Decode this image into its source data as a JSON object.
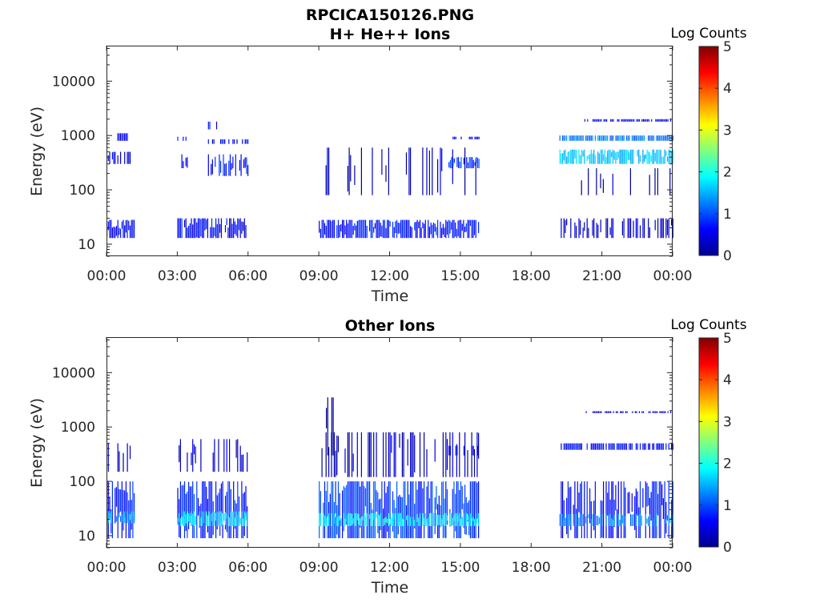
{
  "figure": {
    "filename": "RPCICA150126.PNG"
  },
  "chart_data": [
    {
      "type": "heatmap",
      "title": "H+ He++ Ions",
      "xlabel": "Time",
      "ylabel": "Energy (eV)",
      "y_scale": "log",
      "ylim": [
        6,
        45000
      ],
      "x_ticks": [
        "00:00",
        "03:00",
        "06:00",
        "09:00",
        "12:00",
        "15:00",
        "18:00",
        "21:00",
        "00:00"
      ],
      "x_tick_hours": [
        0,
        3,
        6,
        9,
        12,
        15,
        18,
        21,
        24
      ],
      "y_ticks": [
        10,
        100,
        1000,
        10000
      ],
      "y_tick_labels": [
        "10",
        "100",
        "1000",
        "10000"
      ],
      "colorbar": {
        "label": "Log Counts",
        "min": 0,
        "max": 5,
        "ticks": [
          "0",
          "1",
          "2",
          "3",
          "4",
          "5"
        ]
      },
      "data_intervals_hours": [
        [
          0.0,
          1.2
        ],
        [
          3.0,
          6.0
        ],
        [
          9.0,
          15.8
        ],
        [
          19.2,
          24.0
        ]
      ],
      "bands": [
        {
          "t0": 0.0,
          "t1": 1.2,
          "e0": 13,
          "e1": 28,
          "level": 0.6,
          "density": 0.85
        },
        {
          "t0": 0.0,
          "t1": 1.2,
          "e0": 300,
          "e1": 500,
          "level": 0.5,
          "density": 0.5
        },
        {
          "t0": 0.4,
          "t1": 1.0,
          "e0": 800,
          "e1": 1100,
          "level": 0.5,
          "density": 0.5
        },
        {
          "t0": 3.0,
          "t1": 6.0,
          "e0": 13,
          "e1": 30,
          "level": 0.6,
          "density": 0.9
        },
        {
          "t0": 3.0,
          "t1": 3.5,
          "e0": 250,
          "e1": 450,
          "level": 0.7,
          "density": 0.7
        },
        {
          "t0": 3.0,
          "t1": 3.4,
          "e0": 800,
          "e1": 950,
          "level": 0.7,
          "density": 0.6
        },
        {
          "t0": 4.3,
          "t1": 6.0,
          "e0": 180,
          "e1": 450,
          "level": 0.7,
          "density": 0.75
        },
        {
          "t0": 4.3,
          "t1": 6.0,
          "e0": 700,
          "e1": 850,
          "level": 0.6,
          "density": 0.6
        },
        {
          "t0": 4.3,
          "t1": 4.8,
          "e0": 1300,
          "e1": 1800,
          "level": 0.6,
          "density": 0.5
        },
        {
          "t0": 9.0,
          "t1": 15.8,
          "e0": 13,
          "e1": 28,
          "level": 0.7,
          "density": 0.95
        },
        {
          "t0": 9.0,
          "t1": 15.8,
          "e0": 80,
          "e1": 600,
          "level": 0.3,
          "density": 0.2
        },
        {
          "t0": 14.5,
          "t1": 15.8,
          "e0": 250,
          "e1": 400,
          "level": 0.9,
          "density": 0.8
        },
        {
          "t0": 14.5,
          "t1": 15.8,
          "e0": 850,
          "e1": 950,
          "level": 0.6,
          "density": 0.5
        },
        {
          "t0": 19.2,
          "t1": 24.0,
          "e0": 13,
          "e1": 30,
          "level": 0.35,
          "density": 0.45
        },
        {
          "t0": 19.2,
          "t1": 24.0,
          "e0": 300,
          "e1": 550,
          "level": 1.6,
          "density": 0.9
        },
        {
          "t0": 19.2,
          "t1": 24.0,
          "e0": 800,
          "e1": 1000,
          "level": 1.2,
          "density": 0.8
        },
        {
          "t0": 20.2,
          "t1": 24.0,
          "e0": 1800,
          "e1": 2000,
          "level": 0.6,
          "density": 0.7
        },
        {
          "t0": 20.0,
          "t1": 24.0,
          "e0": 80,
          "e1": 250,
          "level": 0.25,
          "density": 0.2
        }
      ]
    },
    {
      "type": "heatmap",
      "title": "Other Ions",
      "xlabel": "Time",
      "ylabel": "Energy (eV)",
      "y_scale": "log",
      "ylim": [
        6,
        45000
      ],
      "x_ticks": [
        "00:00",
        "03:00",
        "06:00",
        "09:00",
        "12:00",
        "15:00",
        "18:00",
        "21:00",
        "00:00"
      ],
      "x_tick_hours": [
        0,
        3,
        6,
        9,
        12,
        15,
        18,
        21,
        24
      ],
      "y_ticks": [
        10,
        100,
        1000,
        10000
      ],
      "y_tick_labels": [
        "10",
        "100",
        "1000",
        "10000"
      ],
      "colorbar": {
        "label": "Log Counts",
        "min": 0,
        "max": 5,
        "ticks": [
          "0",
          "1",
          "2",
          "3",
          "4",
          "5"
        ]
      },
      "data_intervals_hours": [
        [
          0.0,
          1.2
        ],
        [
          3.0,
          6.0
        ],
        [
          9.0,
          15.8
        ],
        [
          19.2,
          24.0
        ]
      ],
      "bands": [
        {
          "t0": 0.0,
          "t1": 1.2,
          "e0": 9,
          "e1": 100,
          "level": 0.7,
          "density": 0.9
        },
        {
          "t0": 0.0,
          "t1": 1.2,
          "e0": 17,
          "e1": 28,
          "level": 1.4,
          "density": 0.7
        },
        {
          "t0": 0.0,
          "t1": 1.2,
          "e0": 150,
          "e1": 500,
          "level": 0.3,
          "density": 0.2
        },
        {
          "t0": 3.0,
          "t1": 6.0,
          "e0": 9,
          "e1": 100,
          "level": 0.8,
          "density": 0.95
        },
        {
          "t0": 3.0,
          "t1": 6.0,
          "e0": 15,
          "e1": 28,
          "level": 1.7,
          "density": 0.9
        },
        {
          "t0": 3.0,
          "t1": 6.0,
          "e0": 150,
          "e1": 600,
          "level": 0.4,
          "density": 0.4
        },
        {
          "t0": 9.0,
          "t1": 15.8,
          "e0": 9,
          "e1": 100,
          "level": 0.9,
          "density": 0.95
        },
        {
          "t0": 9.0,
          "t1": 15.8,
          "e0": 15,
          "e1": 26,
          "level": 1.8,
          "density": 0.9
        },
        {
          "t0": 9.0,
          "t1": 15.8,
          "e0": 120,
          "e1": 800,
          "level": 0.35,
          "density": 0.35
        },
        {
          "t0": 9.3,
          "t1": 9.9,
          "e0": 300,
          "e1": 3500,
          "level": 0.25,
          "density": 0.3
        },
        {
          "t0": 14.5,
          "t1": 15.8,
          "e0": 300,
          "e1": 450,
          "level": 0.6,
          "density": 0.6
        },
        {
          "t0": 19.2,
          "t1": 24.0,
          "e0": 9,
          "e1": 100,
          "level": 0.7,
          "density": 0.75
        },
        {
          "t0": 19.2,
          "t1": 24.0,
          "e0": 15,
          "e1": 25,
          "level": 1.3,
          "density": 0.7
        },
        {
          "t0": 19.2,
          "t1": 24.0,
          "e0": 380,
          "e1": 500,
          "level": 0.6,
          "density": 0.75
        },
        {
          "t0": 20.2,
          "t1": 24.0,
          "e0": 1800,
          "e1": 1950,
          "level": 0.5,
          "density": 0.6
        }
      ]
    }
  ]
}
